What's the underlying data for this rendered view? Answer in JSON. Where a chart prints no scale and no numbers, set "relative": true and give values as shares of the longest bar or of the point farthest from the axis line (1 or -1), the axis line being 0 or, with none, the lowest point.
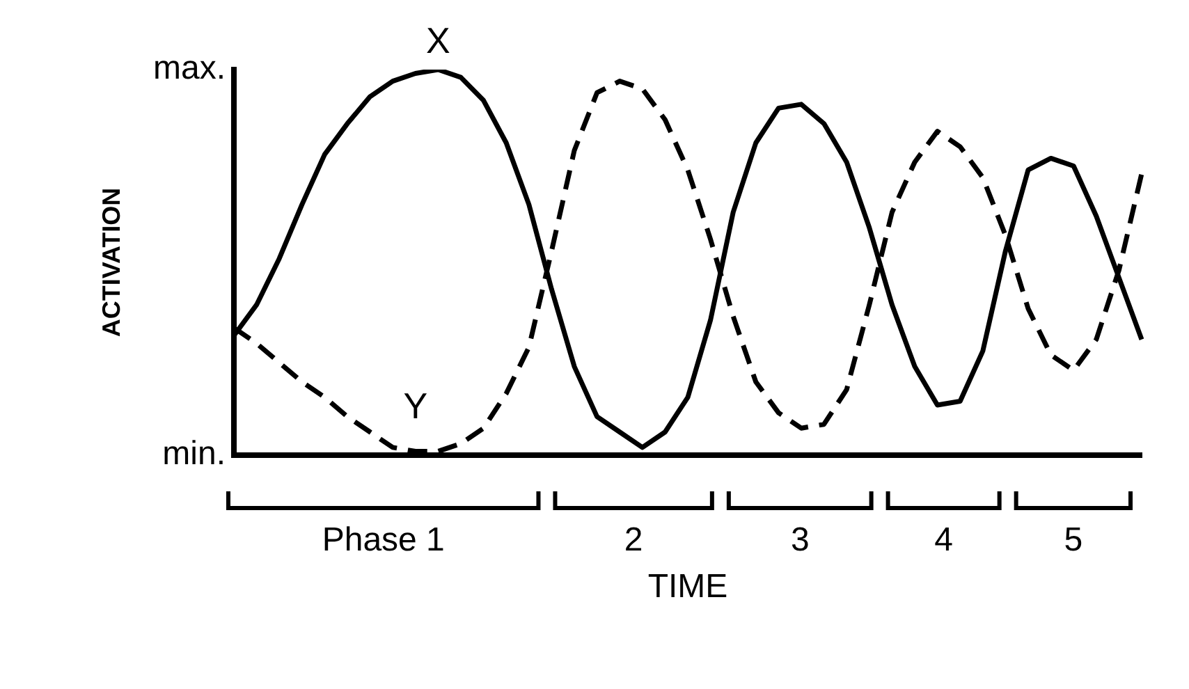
{
  "chart_data": {
    "type": "line",
    "xlabel": "TIME",
    "ylabel": "ACTIVATION",
    "categories": [
      null,
      null,
      null,
      null,
      null,
      null,
      null,
      null,
      null,
      null,
      null,
      null,
      null,
      null,
      null,
      null,
      null,
      null,
      null,
      null,
      null,
      null,
      null,
      null,
      null,
      null,
      null,
      null,
      null,
      null,
      null,
      null,
      null,
      null,
      null,
      null,
      null,
      null,
      null,
      null,
      null
    ],
    "relative": true,
    "grid": false,
    "series": [
      {
        "name": "X",
        "color": "#000000",
        "line_style": "solid",
        "values": [
          0.31,
          0.39,
          0.51,
          0.65,
          0.78,
          0.86,
          0.93,
          0.97,
          0.99,
          1.0,
          0.98,
          0.92,
          0.81,
          0.65,
          0.43,
          0.23,
          0.1,
          0.06,
          0.02,
          0.06,
          0.15,
          0.35,
          0.63,
          0.81,
          0.9,
          0.91,
          0.86,
          0.76,
          0.59,
          0.39,
          0.23,
          0.13,
          0.14,
          0.27,
          0.53,
          0.74,
          0.77,
          0.75,
          0.62,
          0.46,
          0.3
        ]
      },
      {
        "name": "Y",
        "color": "#000000",
        "line_style": "dashed",
        "values": [
          0.33,
          0.29,
          0.24,
          0.19,
          0.15,
          0.1,
          0.06,
          0.02,
          0.01,
          0.01,
          0.03,
          0.07,
          0.16,
          0.28,
          0.53,
          0.79,
          0.94,
          0.97,
          0.95,
          0.87,
          0.74,
          0.56,
          0.36,
          0.19,
          0.11,
          0.07,
          0.08,
          0.17,
          0.39,
          0.63,
          0.76,
          0.84,
          0.8,
          0.72,
          0.57,
          0.38,
          0.26,
          0.22,
          0.3,
          0.48,
          0.73
        ]
      }
    ],
    "annotations": [
      "max.",
      "min.",
      "Phase 1",
      "2",
      "3",
      "4",
      "5"
    ]
  }
}
